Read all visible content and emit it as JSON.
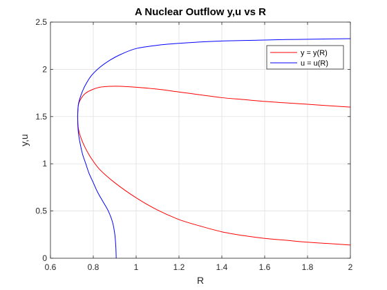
{
  "chart_data": {
    "type": "line",
    "title": "A Nuclear Outflow y,u vs R",
    "xlabel": "R",
    "ylabel": "y,u",
    "xlim": [
      0.6,
      2
    ],
    "ylim": [
      0,
      2.5
    ],
    "xticks": [
      0.6,
      0.8,
      1,
      1.2,
      1.4,
      1.6,
      1.8,
      2
    ],
    "xtick_labels": [
      "0.6",
      "0.8",
      "1",
      "1.2",
      "1.4",
      "1.6",
      "1.8",
      "2"
    ],
    "yticks": [
      0,
      0.5,
      1,
      1.5,
      2,
      2.5
    ],
    "ytick_labels": [
      "0",
      "0.5",
      "1",
      "1.5",
      "2",
      "2.5"
    ],
    "grid": true,
    "legend_position": "top-right",
    "series": [
      {
        "name": "y = y(R)",
        "color": "#ff0000",
        "branches": [
          {
            "x": [
              0.727,
              0.73,
              0.74,
              0.76,
              0.79,
              0.83,
              0.88,
              0.93,
              1.0,
              1.1,
              1.2,
              1.3,
              1.4,
              1.5,
              1.6,
              1.7,
              1.8,
              1.9,
              2.0
            ],
            "y": [
              1.5,
              1.62,
              1.68,
              1.74,
              1.78,
              1.81,
              1.82,
              1.82,
              1.81,
              1.79,
              1.76,
              1.73,
              1.7,
              1.68,
              1.66,
              1.645,
              1.63,
              1.615,
              1.6
            ]
          },
          {
            "x": [
              0.727,
              0.73,
              0.74,
              0.76,
              0.79,
              0.83,
              0.9,
              1.0,
              1.1,
              1.2,
              1.3,
              1.4,
              1.5,
              1.6,
              1.7,
              1.8,
              1.9,
              2.0
            ],
            "y": [
              1.5,
              1.38,
              1.29,
              1.18,
              1.06,
              0.94,
              0.8,
              0.64,
              0.51,
              0.41,
              0.34,
              0.28,
              0.24,
              0.21,
              0.19,
              0.17,
              0.155,
              0.14
            ]
          }
        ]
      },
      {
        "name": "u = u(R)",
        "color": "#0000ff",
        "branches": [
          {
            "x": [
              0.727,
              0.73,
              0.74,
              0.76,
              0.79,
              0.83,
              0.88,
              0.93,
              1.0,
              1.1,
              1.2,
              1.3,
              1.4,
              1.5,
              1.6,
              1.7,
              1.8,
              1.9,
              2.0
            ],
            "y": [
              1.5,
              1.62,
              1.71,
              1.82,
              1.93,
              2.02,
              2.1,
              2.16,
              2.22,
              2.255,
              2.275,
              2.29,
              2.3,
              2.305,
              2.31,
              2.315,
              2.318,
              2.322,
              2.325
            ]
          },
          {
            "x": [
              0.727,
              0.728,
              0.732,
              0.74,
              0.75,
              0.765,
              0.78,
              0.8,
              0.82,
              0.845,
              0.87,
              0.89,
              0.9,
              0.905,
              0.907
            ],
            "y": [
              1.5,
              1.4,
              1.3,
              1.2,
              1.1,
              1.0,
              0.9,
              0.8,
              0.7,
              0.6,
              0.5,
              0.38,
              0.26,
              0.13,
              0.0
            ]
          }
        ]
      }
    ]
  }
}
